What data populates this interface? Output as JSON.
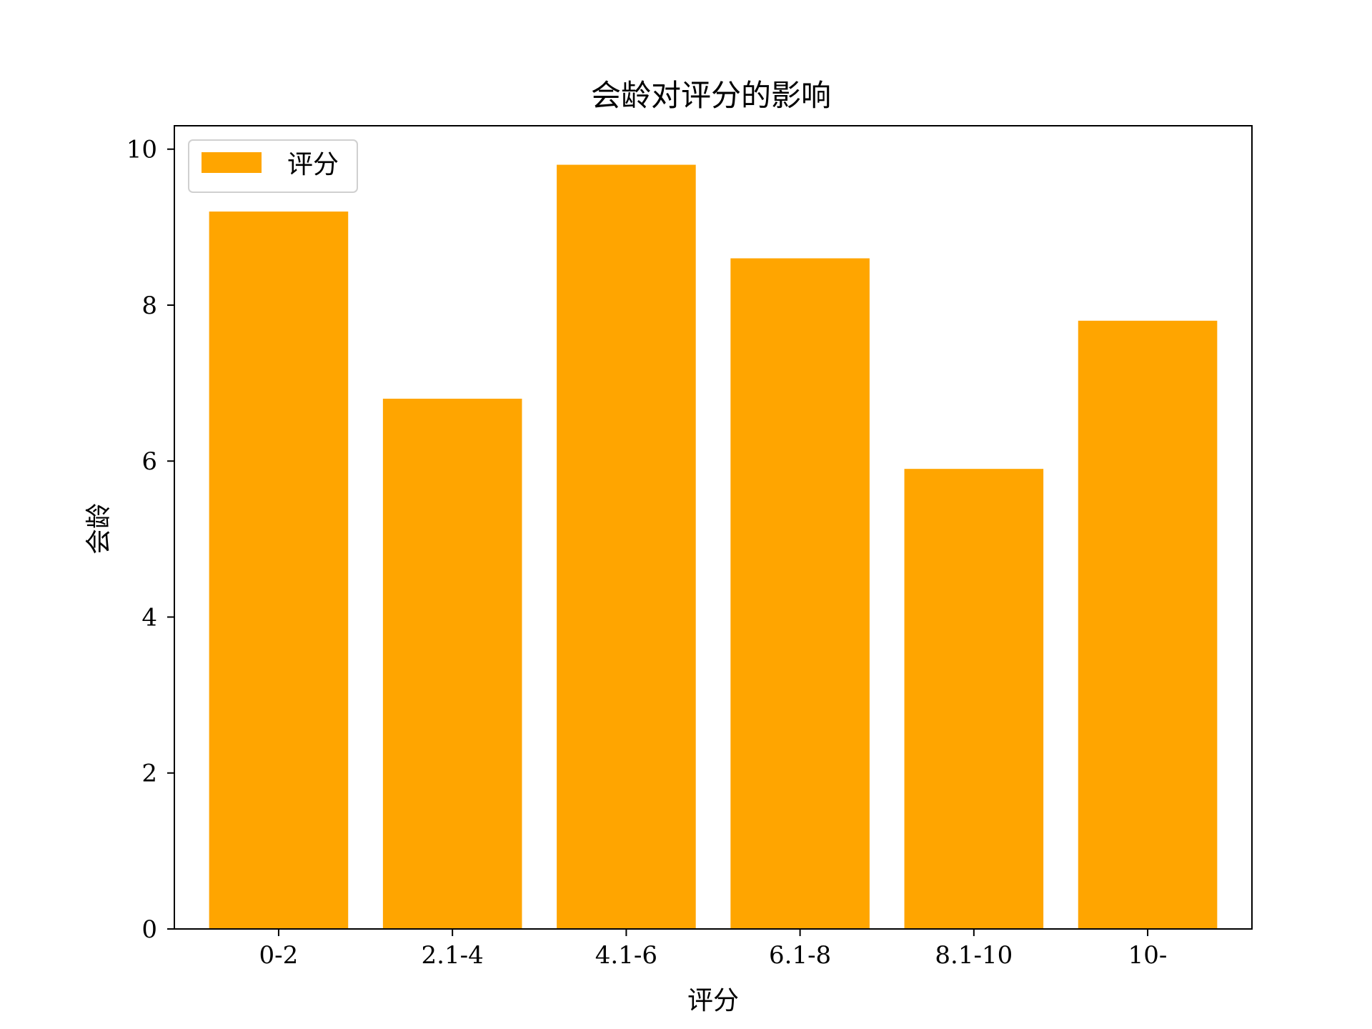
{
  "chart_data": {
    "type": "bar",
    "title": "会龄对评分的影响",
    "xlabel": "评分",
    "ylabel": "会龄",
    "categories": [
      "0-2",
      "2.1-4",
      "4.1-6",
      "6.1-8",
      "8.1-10",
      "10-"
    ],
    "series": [
      {
        "name": "评分",
        "values": [
          9.2,
          6.8,
          9.8,
          8.6,
          5.9,
          7.8
        ],
        "color": "#FFA500"
      }
    ],
    "ylim": [
      0,
      10.3
    ],
    "yticks": [
      0,
      2,
      4,
      6,
      8,
      10
    ],
    "grid": false,
    "legend_position": "top-left"
  }
}
